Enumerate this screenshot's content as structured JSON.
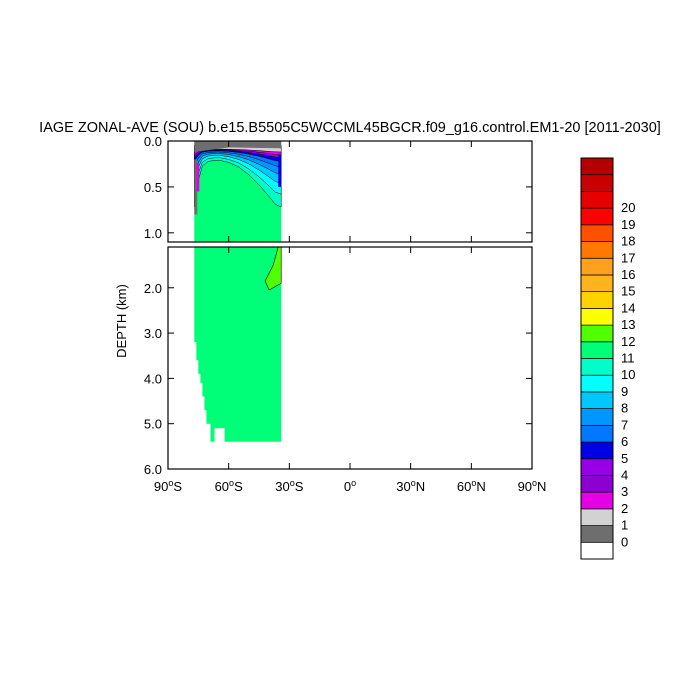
{
  "chart_data": {
    "type": "heatmap",
    "title": "IAGE ZONAL-AVE (SOU) b.e15.B5505C5WCCML45BGCR.f09_g16.control.EM1-20 [2011-2030]",
    "ylabel": "DEPTH (km)",
    "xlim": [
      -90,
      90
    ],
    "top_panel": {
      "ylim": [
        0.0,
        1.1
      ],
      "y_ticks": [
        "0.0",
        "0.5",
        "1.0"
      ],
      "y_tick_values": [
        0.0,
        0.5,
        1.0
      ]
    },
    "bottom_panel": {
      "ylim": [
        1.1,
        6.0
      ],
      "y_ticks": [
        "2.0",
        "3.0",
        "4.0",
        "5.0",
        "6.0"
      ],
      "y_tick_values": [
        2.0,
        3.0,
        4.0,
        5.0,
        6.0
      ]
    },
    "x_ticks": [
      {
        "value": -90,
        "num": "90",
        "hemi": "S"
      },
      {
        "value": -60,
        "num": "60",
        "hemi": "S"
      },
      {
        "value": -30,
        "num": "30",
        "hemi": "S"
      },
      {
        "value": 0,
        "num": "0",
        "hemi": ""
      },
      {
        "value": 30,
        "num": "30",
        "hemi": "N"
      },
      {
        "value": 60,
        "num": "60",
        "hemi": "N"
      },
      {
        "value": 90,
        "num": "90",
        "hemi": "N"
      }
    ],
    "data_region": {
      "lat_min": -77,
      "lat_max": -34,
      "depth_max": 5.4
    },
    "colorbar": {
      "labels": [
        "0",
        "1",
        "2",
        "3",
        "4",
        "5",
        "6",
        "7",
        "8",
        "9",
        "10",
        "11",
        "12",
        "13",
        "14",
        "15",
        "16",
        "17",
        "18",
        "19",
        "20"
      ],
      "colors": [
        "#ffffff",
        "#6e6e6e",
        "#d2d2d2",
        "#e600e6",
        "#8c00d2",
        "#9600e6",
        "#0000e6",
        "#0078ff",
        "#0096ff",
        "#00c8ff",
        "#00ffff",
        "#00ffc8",
        "#00ff78",
        "#50ff00",
        "#ffff00",
        "#ffd200",
        "#ffb41e",
        "#ffa01e",
        "#ff7800",
        "#ff5000",
        "#ff0000",
        "#e60000",
        "#c80000",
        "#b40000"
      ]
    }
  }
}
